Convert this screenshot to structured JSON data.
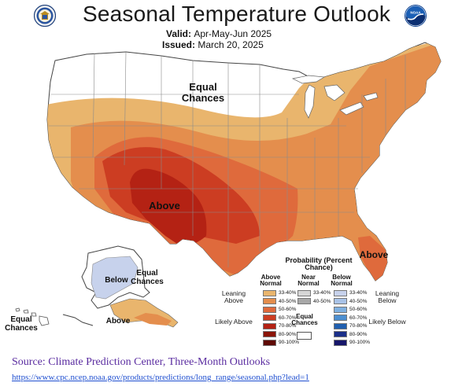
{
  "title": "Seasonal Temperature Outlook",
  "valid": {
    "label": "Valid:",
    "value": "Apr-May-Jun 2025"
  },
  "issued": {
    "label": "Issued:",
    "value": "March 20, 2025"
  },
  "icons": {
    "left_logo": "department-of-commerce-seal-icon",
    "right_logo": "noaa-logo-icon"
  },
  "noaa_text": "NOAA",
  "map_labels": {
    "equal_chances_north": "Equal Chances",
    "above_southwest": "Above",
    "above_florida": "Above",
    "below_alaska": "Below",
    "equal_chances_alaska": "Equal Chances",
    "equal_chances_hawaii": "Equal Chances",
    "above_alaska": "Above"
  },
  "legend": {
    "title": "Probability (Percent Chance)",
    "above_header": "Above Normal",
    "near_header": "Near Normal",
    "below_header": "Below Normal",
    "leaning_above": "Leaning Above",
    "likely_above": "Likely Above",
    "leaning_below": "Leaning Below",
    "likely_below": "Likely Below",
    "equal_chances": "Equal Chances",
    "above_rows": [
      {
        "label": "33-40%",
        "color": "#e9b56d"
      },
      {
        "label": "40-50%",
        "color": "#e48e4d"
      },
      {
        "label": "50-60%",
        "color": "#df6a3c"
      },
      {
        "label": "60-70%",
        "color": "#cc3d22"
      },
      {
        "label": "70-80%",
        "color": "#b42214"
      },
      {
        "label": "80-90%",
        "color": "#8a1408"
      },
      {
        "label": "90-100%",
        "color": "#5e0a04"
      }
    ],
    "near_rows": [
      {
        "label": "33-40%",
        "color": "#d6d6d6"
      },
      {
        "label": "40-50%",
        "color": "#a8a8a8"
      }
    ],
    "below_rows": [
      {
        "label": "33-40%",
        "color": "#c7d2ec"
      },
      {
        "label": "40-50%",
        "color": "#a9c3e8"
      },
      {
        "label": "50-60%",
        "color": "#7fb0e0"
      },
      {
        "label": "60-70%",
        "color": "#4d8fd0"
      },
      {
        "label": "70-80%",
        "color": "#2160b0"
      },
      {
        "label": "80-90%",
        "color": "#1b2f88"
      },
      {
        "label": "90-100%",
        "color": "#16166a"
      }
    ]
  },
  "source_line": "Source: Climate  Prediction Center, Three-Month Outlooks",
  "source_url": "https://www.cpc.ncep.noaa.gov/products/predictions/long_range/seasonal.php?lead=1"
}
